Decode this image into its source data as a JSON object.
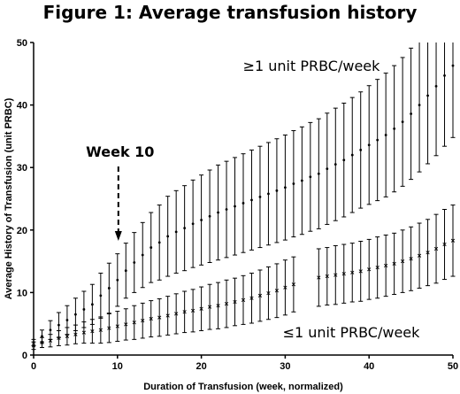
{
  "chart_data": {
    "type": "scatter",
    "title": "Figure 1: Average transfusion history",
    "xlabel": "Duration of Transfusion (week, normalized)",
    "ylabel": "Average History of Transfusion (unit PRBC)",
    "xlim": [
      0,
      50
    ],
    "ylim": [
      0,
      50
    ],
    "x_ticks": [
      0,
      10,
      20,
      30,
      40,
      50
    ],
    "y_ticks": [
      0,
      10,
      20,
      30,
      40,
      50
    ],
    "grid": false,
    "legend": "none",
    "series": [
      {
        "label": "≥1 unit PRBC/week",
        "marker": "dot",
        "color": "#000000",
        "points": [
          [
            0,
            2.0,
            0.5
          ],
          [
            1,
            3.0,
            1.0
          ],
          [
            2,
            4.0,
            1.5
          ],
          [
            3,
            4.8,
            2.0
          ],
          [
            4,
            5.6,
            2.3
          ],
          [
            5,
            6.5,
            2.6
          ],
          [
            6,
            7.3,
            2.9
          ],
          [
            7,
            8.1,
            3.2
          ],
          [
            8,
            9.5,
            3.6
          ],
          [
            9,
            10.7,
            4.0
          ],
          [
            10,
            12.0,
            4.2
          ],
          [
            11,
            13.5,
            4.4
          ],
          [
            12,
            14.8,
            4.8
          ],
          [
            13,
            16.0,
            5.2
          ],
          [
            14,
            17.2,
            5.6
          ],
          [
            15,
            18.0,
            6.0
          ],
          [
            16,
            19.0,
            6.4
          ],
          [
            17,
            19.7,
            6.6
          ],
          [
            18,
            20.3,
            6.8
          ],
          [
            19,
            21.0,
            7.0
          ],
          [
            20,
            21.6,
            7.2
          ],
          [
            21,
            22.2,
            7.4
          ],
          [
            22,
            22.8,
            7.6
          ],
          [
            23,
            23.3,
            7.7
          ],
          [
            24,
            23.8,
            7.8
          ],
          [
            25,
            24.3,
            7.9
          ],
          [
            26,
            24.8,
            8.0
          ],
          [
            27,
            25.3,
            8.1
          ],
          [
            28,
            25.8,
            8.2
          ],
          [
            29,
            26.3,
            8.3
          ],
          [
            30,
            26.8,
            8.4
          ],
          [
            31,
            27.4,
            8.5
          ],
          [
            32,
            27.9,
            8.6
          ],
          [
            33,
            28.5,
            8.7
          ],
          [
            34,
            29.0,
            8.8
          ],
          [
            35,
            29.8,
            8.9
          ],
          [
            36,
            30.5,
            9.0
          ],
          [
            37,
            31.2,
            9.1
          ],
          [
            38,
            32.0,
            9.2
          ],
          [
            39,
            32.8,
            9.3
          ],
          [
            40,
            33.6,
            9.5
          ],
          [
            41,
            34.4,
            9.7
          ],
          [
            42,
            35.2,
            9.9
          ],
          [
            43,
            36.2,
            10.1
          ],
          [
            44,
            37.3,
            10.3
          ],
          [
            45,
            38.6,
            10.5
          ],
          [
            46,
            40.0,
            10.7
          ],
          [
            47,
            41.5,
            10.9
          ],
          [
            48,
            43.0,
            11.1
          ],
          [
            49,
            44.7,
            11.3
          ],
          [
            50,
            46.3,
            11.5
          ]
        ]
      },
      {
        "label": "≤1 unit PRBC/week",
        "marker": "x",
        "color": "#000000",
        "points": [
          [
            0,
            1.5,
            0.6
          ],
          [
            1,
            2.0,
            0.8
          ],
          [
            2,
            2.3,
            1.0
          ],
          [
            3,
            2.7,
            1.2
          ],
          [
            4,
            3.0,
            1.4
          ],
          [
            5,
            3.3,
            1.5
          ],
          [
            6,
            3.6,
            1.7
          ],
          [
            7,
            3.8,
            1.9
          ],
          [
            8,
            4.0,
            2.1
          ],
          [
            9,
            4.3,
            2.3
          ],
          [
            10,
            4.6,
            2.4
          ],
          [
            11,
            4.9,
            2.5
          ],
          [
            12,
            5.2,
            2.7
          ],
          [
            13,
            5.5,
            2.8
          ],
          [
            14,
            5.8,
            2.9
          ],
          [
            15,
            6.0,
            3.0
          ],
          [
            16,
            6.3,
            3.1
          ],
          [
            17,
            6.6,
            3.2
          ],
          [
            18,
            6.9,
            3.3
          ],
          [
            19,
            7.1,
            3.4
          ],
          [
            20,
            7.4,
            3.5
          ],
          [
            21,
            7.7,
            3.6
          ],
          [
            22,
            7.9,
            3.7
          ],
          [
            23,
            8.2,
            3.8
          ],
          [
            24,
            8.5,
            3.8
          ],
          [
            25,
            8.8,
            3.9
          ],
          [
            26,
            9.1,
            4.0
          ],
          [
            27,
            9.5,
            4.1
          ],
          [
            28,
            9.9,
            4.2
          ],
          [
            29,
            10.3,
            4.3
          ],
          [
            30,
            10.8,
            4.4
          ],
          [
            31,
            11.3,
            4.4
          ],
          [
            34,
            12.4,
            4.6
          ],
          [
            35,
            12.6,
            4.6
          ],
          [
            36,
            12.8,
            4.7
          ],
          [
            37,
            13.0,
            4.7
          ],
          [
            38,
            13.2,
            4.7
          ],
          [
            39,
            13.4,
            4.8
          ],
          [
            40,
            13.7,
            4.8
          ],
          [
            41,
            14.0,
            4.9
          ],
          [
            42,
            14.3,
            4.9
          ],
          [
            43,
            14.6,
            4.9
          ],
          [
            44,
            15.0,
            5.0
          ],
          [
            45,
            15.4,
            5.1
          ],
          [
            46,
            15.9,
            5.2
          ],
          [
            47,
            16.4,
            5.3
          ],
          [
            48,
            17.0,
            5.5
          ],
          [
            49,
            17.7,
            5.6
          ],
          [
            50,
            18.3,
            5.7
          ]
        ]
      }
    ],
    "annotations": [
      {
        "text": "Week 10",
        "x": 10,
        "y": 16,
        "arrow": "dashed-down"
      },
      {
        "text": "≥1 unit PRBC/week",
        "x": 31,
        "y": 46.5
      },
      {
        "text": "≤1 unit PRBC/week",
        "x": 38,
        "y": 3.2
      }
    ]
  }
}
